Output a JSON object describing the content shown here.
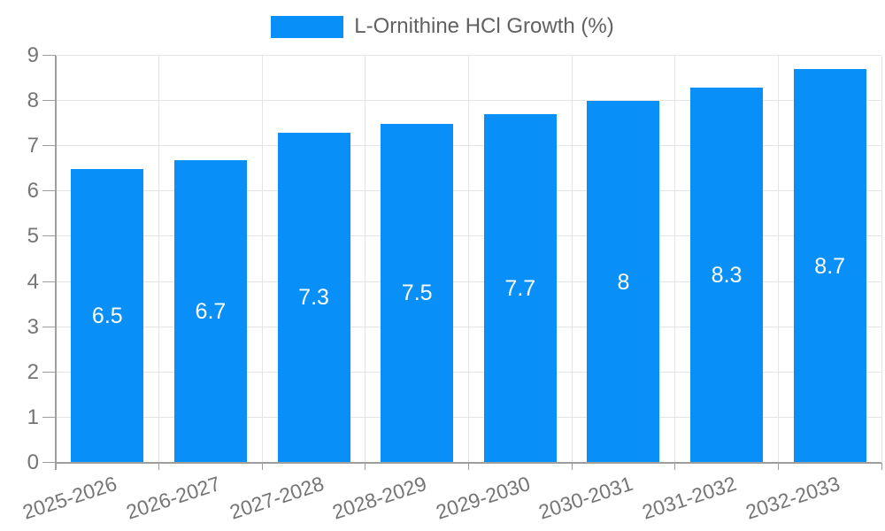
{
  "legend": {
    "label": "L-Ornithine HCl Growth (%)"
  },
  "chart_data": {
    "type": "bar",
    "title": "L-Ornithine HCl Growth (%)",
    "categories": [
      "2025-2026",
      "2026-2027",
      "2027-2028",
      "2028-2029",
      "2029-2030",
      "2030-2031",
      "2031-2032",
      "2032-2033"
    ],
    "values": [
      6.5,
      6.7,
      7.3,
      7.5,
      7.7,
      8,
      8.3,
      8.7
    ],
    "bar_labels": [
      "6.5",
      "6.7",
      "7.3",
      "7.5",
      "7.7",
      "8",
      "8.3",
      "8.7"
    ],
    "xlabel": "",
    "ylabel": "",
    "ylim": [
      0,
      9
    ],
    "yticks": [
      0,
      1,
      2,
      3,
      4,
      5,
      6,
      7,
      8,
      9
    ],
    "grid": true,
    "legend_position": "top",
    "colors": {
      "bar": "#0990f8",
      "bar_value_text": "#ffffff",
      "axis_text": "#757575",
      "legend_text": "#616161",
      "gridline": "#e4e4e4",
      "axis_line": "#9e9e9e",
      "background": "#ffffff"
    }
  }
}
